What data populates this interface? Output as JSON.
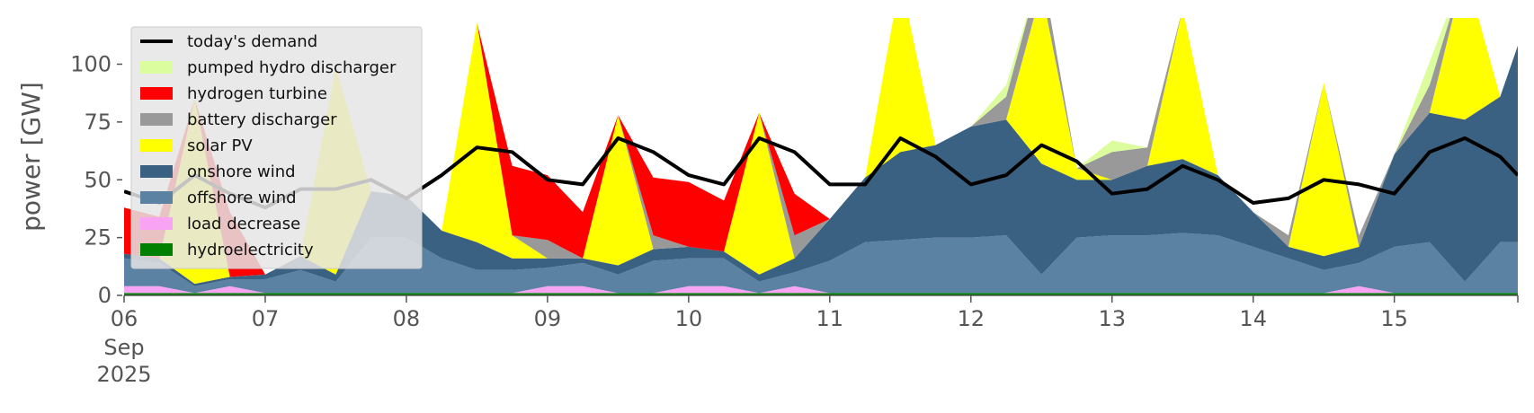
{
  "chart_data": {
    "type": "area",
    "title": "",
    "xlabel": "",
    "ylabel": "power [GW]",
    "ylim": [
      0,
      120
    ],
    "yticks": [
      0,
      25,
      50,
      75,
      100
    ],
    "xlim": [
      "2025-09-06 00:00",
      "2025-09-15 21:00"
    ],
    "x_ticks": [
      {
        "x": "2025-09-06",
        "label": "06",
        "sub": [
          "Sep",
          "2025"
        ]
      },
      {
        "x": "2025-09-07",
        "label": "07"
      },
      {
        "x": "2025-09-08",
        "label": "08"
      },
      {
        "x": "2025-09-09",
        "label": "09"
      },
      {
        "x": "2025-09-10",
        "label": "10"
      },
      {
        "x": "2025-09-11",
        "label": "11"
      },
      {
        "x": "2025-09-12",
        "label": "12"
      },
      {
        "x": "2025-09-13",
        "label": "13"
      },
      {
        "x": "2025-09-14",
        "label": "14"
      },
      {
        "x": "2025-09-15",
        "label": "15"
      }
    ],
    "grid": false,
    "legend_position": "top-left",
    "x": [
      "2025-09-06 00:00",
      "2025-09-06 06:00",
      "2025-09-06 12:00",
      "2025-09-06 18:00",
      "2025-09-07 00:00",
      "2025-09-07 06:00",
      "2025-09-07 12:00",
      "2025-09-07 18:00",
      "2025-09-08 00:00",
      "2025-09-08 06:00",
      "2025-09-08 12:00",
      "2025-09-08 18:00",
      "2025-09-09 00:00",
      "2025-09-09 06:00",
      "2025-09-09 12:00",
      "2025-09-09 18:00",
      "2025-09-10 00:00",
      "2025-09-10 06:00",
      "2025-09-10 12:00",
      "2025-09-10 18:00",
      "2025-09-11 00:00",
      "2025-09-11 06:00",
      "2025-09-11 12:00",
      "2025-09-11 18:00",
      "2025-09-12 00:00",
      "2025-09-12 06:00",
      "2025-09-12 12:00",
      "2025-09-12 18:00",
      "2025-09-13 00:00",
      "2025-09-13 06:00",
      "2025-09-13 12:00",
      "2025-09-13 18:00",
      "2025-09-14 00:00",
      "2025-09-14 06:00",
      "2025-09-14 12:00",
      "2025-09-14 18:00",
      "2025-09-15 00:00",
      "2025-09-15 06:00",
      "2025-09-15 12:00",
      "2025-09-15 18:00",
      "2025-09-15 21:00"
    ],
    "series": [
      {
        "name": "hydroelectricity",
        "color": "#008000",
        "values": [
          1,
          1,
          1,
          1,
          1,
          1,
          1,
          1,
          1,
          1,
          1,
          1,
          1,
          1,
          1,
          1,
          1,
          1,
          1,
          1,
          1,
          1,
          1,
          1,
          1,
          1,
          1,
          1,
          1,
          1,
          1,
          1,
          1,
          1,
          1,
          1,
          1,
          1,
          1,
          1,
          1
        ]
      },
      {
        "name": "load decrease",
        "color": "#f9a3f5",
        "values": [
          3,
          3,
          0,
          3,
          0,
          0,
          0,
          0,
          0,
          0,
          0,
          0,
          3,
          3,
          0,
          0,
          3,
          3,
          0,
          3,
          0,
          0,
          0,
          0,
          0,
          0,
          0,
          0,
          0,
          0,
          0,
          0,
          0,
          0,
          0,
          3,
          0,
          0,
          0,
          0,
          0
        ]
      },
      {
        "name": "offshore wind",
        "color": "#5b81a3",
        "values": [
          12,
          10,
          3,
          3,
          6,
          10,
          5,
          24,
          24,
          15,
          10,
          10,
          8,
          10,
          8,
          14,
          12,
          12,
          5,
          6,
          14,
          22,
          23,
          24,
          24,
          25,
          8,
          24,
          25,
          25,
          26,
          25,
          20,
          15,
          10,
          10,
          20,
          22,
          5,
          22,
          22
        ]
      },
      {
        "name": "onshore wind",
        "color": "#3b6182",
        "values": [
          2,
          2,
          1,
          1,
          2,
          6,
          3,
          20,
          18,
          12,
          12,
          5,
          4,
          2,
          4,
          5,
          5,
          3,
          3,
          6,
          18,
          28,
          38,
          40,
          48,
          50,
          48,
          25,
          24,
          30,
          32,
          26,
          15,
          5,
          6,
          7,
          40,
          56,
          70,
          63,
          85
        ]
      },
      {
        "name": "solar PV",
        "color": "#ffff00",
        "values": [
          0,
          0,
          80,
          0,
          0,
          0,
          90,
          0,
          0,
          0,
          95,
          10,
          0,
          0,
          65,
          0,
          0,
          0,
          70,
          0,
          0,
          0,
          75,
          0,
          0,
          0,
          75,
          5,
          0,
          0,
          65,
          0,
          0,
          0,
          75,
          0,
          0,
          0,
          65,
          0,
          0
        ]
      },
      {
        "name": "battery discharger",
        "color": "#999999",
        "values": [
          0,
          0,
          0,
          0,
          0,
          0,
          0,
          0,
          0,
          0,
          0,
          0,
          8,
          0,
          0,
          6,
          0,
          0,
          0,
          10,
          0,
          0,
          0,
          0,
          0,
          10,
          10,
          0,
          12,
          8,
          0,
          0,
          0,
          5,
          0,
          5,
          0,
          12,
          0,
          0,
          0
        ]
      },
      {
        "name": "hydrogen turbine",
        "color": "#ff0000",
        "values": [
          20,
          18,
          0,
          28,
          0,
          0,
          0,
          0,
          0,
          0,
          0,
          30,
          28,
          20,
          0,
          25,
          28,
          22,
          0,
          18,
          0,
          0,
          0,
          0,
          0,
          0,
          0,
          0,
          0,
          0,
          0,
          0,
          0,
          0,
          0,
          0,
          0,
          0,
          0,
          0,
          0
        ]
      },
      {
        "name": "pumped hydro discharger",
        "color": "#dcfd9e",
        "values": [
          0,
          0,
          0,
          0,
          0,
          0,
          0,
          0,
          0,
          0,
          0,
          0,
          0,
          0,
          0,
          0,
          0,
          0,
          0,
          0,
          0,
          0,
          0,
          0,
          0,
          5,
          0,
          0,
          5,
          0,
          0,
          0,
          0,
          0,
          0,
          0,
          0,
          10,
          0,
          0,
          0
        ]
      }
    ],
    "demand": {
      "name": "today's demand",
      "color": "#000000",
      "values": [
        45,
        40,
        52,
        44,
        38,
        46,
        46,
        50,
        42,
        52,
        64,
        62,
        50,
        48,
        68,
        62,
        52,
        48,
        68,
        62,
        48,
        48,
        68,
        60,
        48,
        52,
        65,
        58,
        44,
        46,
        56,
        50,
        40,
        42,
        50,
        48,
        44,
        62,
        68,
        60,
        52
      ]
    }
  }
}
